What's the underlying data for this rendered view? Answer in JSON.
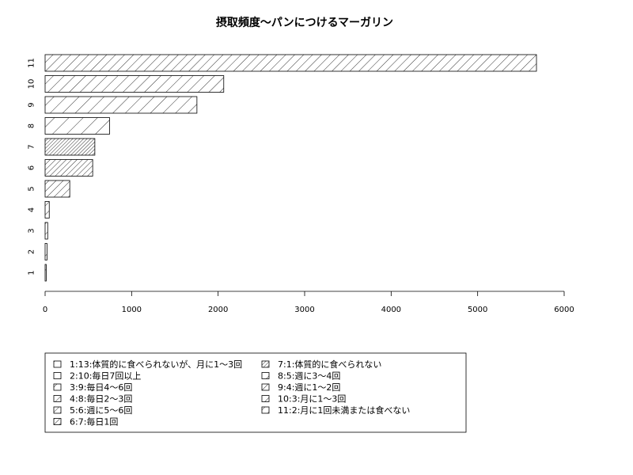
{
  "chart_data": {
    "type": "bar",
    "orientation": "horizontal",
    "title": "摂取頻度〜パンにつけるマーガリン",
    "xlabel": "",
    "ylabel": "",
    "categories": [
      "1",
      "2",
      "3",
      "4",
      "5",
      "6",
      "7",
      "8",
      "9",
      "10",
      "11"
    ],
    "values": [
      13,
      22,
      30,
      48,
      285,
      550,
      575,
      745,
      1755,
      2065,
      5680
    ],
    "xlim": [
      0,
      6000
    ],
    "xticks": [
      "0",
      "1000",
      "2000",
      "3000",
      "4000",
      "5000",
      "6000"
    ],
    "grid": false,
    "legend_position": "bottom",
    "legend": [
      "1:13:体質的に食べられないが、月に1〜3回",
      "2:10:毎日7回以上",
      "3:9:毎日4〜6回",
      "4:8:毎日2〜3回",
      "5:6:週に5〜6回",
      "6:7:毎日1回",
      "7:1:体質的に食べられない",
      "8:5:週に3〜4回",
      "9:4:週に1〜2回",
      "10:3:月に1〜3回",
      "11:2:月に1回未満または食べない"
    ],
    "hatch_density": [
      2,
      3,
      4,
      5,
      6,
      7,
      8,
      2,
      3,
      4,
      5
    ]
  }
}
